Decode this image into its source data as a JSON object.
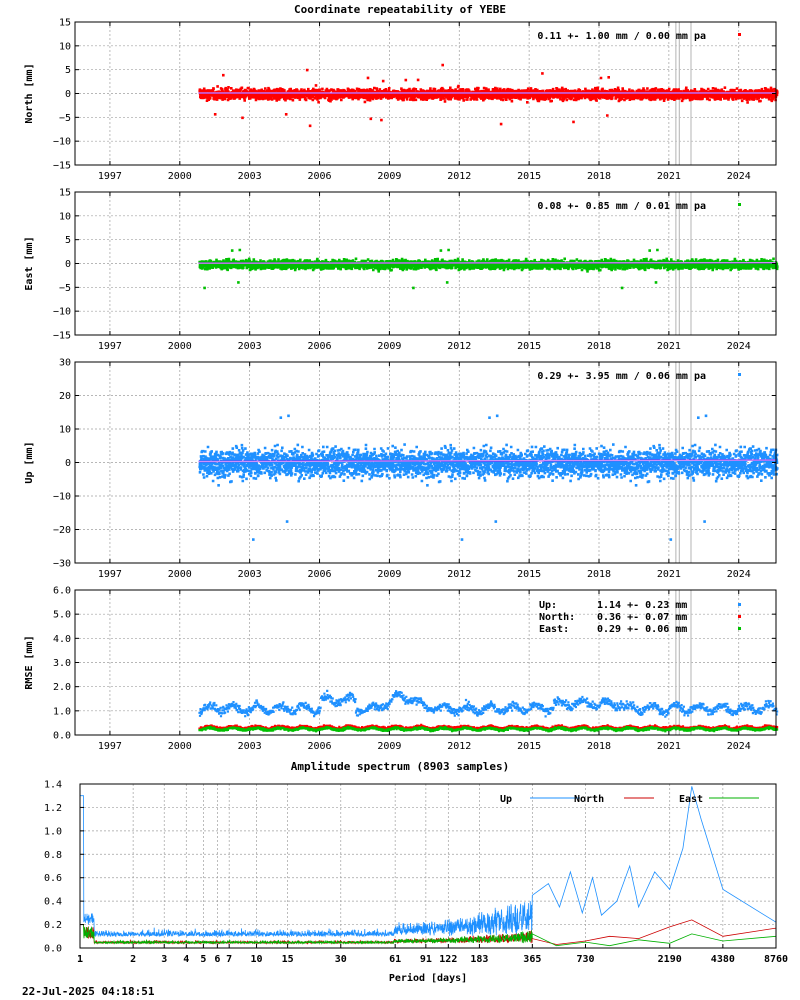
{
  "page": {
    "title": "Coordinate repeatability of YEBE",
    "spectrum_title": "Amplitude spectrum (8903 samples)",
    "timestamp": "22-Jul-2025 04:18:51"
  },
  "colors": {
    "north": "#ff0000",
    "east": "#00c000",
    "up": "#1e90ff",
    "trend": "#a020f0",
    "grid": "#a0a0a0",
    "vline": "#c0c0c0"
  },
  "chart_data": [
    {
      "id": "north",
      "type": "scatter",
      "ylabel": "North [mm]",
      "ylim": [
        -15,
        15
      ],
      "yticks": [
        -15,
        -10,
        -5,
        0,
        5,
        10,
        15
      ],
      "xlim": [
        1995.5,
        2025.6
      ],
      "xticks": [
        1997,
        2000,
        2003,
        2006,
        2009,
        2012,
        2015,
        2018,
        2021,
        2024
      ],
      "x_start": 2000.8,
      "x_end": 2025.6,
      "vertical_lines": [
        2021.3,
        2021.45,
        2021.95
      ],
      "grid": true,
      "legend_position": "top-right",
      "annotation": "0.11 +- 1.00 mm /  0.00 mm pa",
      "mean": 0.11,
      "std": 1.0,
      "trend": 0.0,
      "color": "#ff0000"
    },
    {
      "id": "east",
      "type": "scatter",
      "ylabel": "East [mm]",
      "ylim": [
        -15,
        15
      ],
      "yticks": [
        -15,
        -10,
        -5,
        0,
        5,
        10,
        15
      ],
      "xlim": [
        1995.5,
        2025.6
      ],
      "xticks": [
        1997,
        2000,
        2003,
        2006,
        2009,
        2012,
        2015,
        2018,
        2021,
        2024
      ],
      "x_start": 2000.8,
      "x_end": 2025.6,
      "vertical_lines": [
        2021.3,
        2021.45,
        2021.95
      ],
      "grid": true,
      "legend_position": "top-right",
      "annotation": "0.08 +- 0.85 mm /  0.01 mm pa",
      "mean": 0.08,
      "std": 0.85,
      "trend": 0.01,
      "color": "#00c000"
    },
    {
      "id": "up",
      "type": "scatter",
      "ylabel": "Up [mm]",
      "ylim": [
        -30,
        30
      ],
      "yticks": [
        -30,
        -20,
        -10,
        0,
        10,
        20,
        30
      ],
      "xlim": [
        1995.5,
        2025.6
      ],
      "xticks": [
        1997,
        2000,
        2003,
        2006,
        2009,
        2012,
        2015,
        2018,
        2021,
        2024
      ],
      "x_start": 2000.8,
      "x_end": 2025.6,
      "vertical_lines": [
        2021.3,
        2021.45,
        2021.95
      ],
      "grid": true,
      "legend_position": "top-right",
      "annotation": "0.29 +- 3.95 mm /  0.06 mm pa",
      "mean": 0.29,
      "std": 3.95,
      "trend": 0.06,
      "color": "#1e90ff"
    },
    {
      "id": "rmse",
      "type": "scatter",
      "ylabel": "RMSE [mm]",
      "ylim": [
        0,
        6
      ],
      "yticks": [
        0.0,
        1.0,
        2.0,
        3.0,
        4.0,
        5.0,
        6.0
      ],
      "ytick_labels": [
        "0.0",
        "1.0",
        "2.0",
        "3.0",
        "4.0",
        "5.0",
        "6.0"
      ],
      "xlim": [
        1995.5,
        2025.6
      ],
      "xticks": [
        1997,
        2000,
        2003,
        2006,
        2009,
        2012,
        2015,
        2018,
        2021,
        2024
      ],
      "x_start": 2000.8,
      "x_end": 2025.6,
      "vertical_lines": [
        2021.3,
        2021.45,
        2021.95
      ],
      "grid": true,
      "legend_position": "top-right",
      "legend": [
        {
          "name": "Up:",
          "text": "1.14 +- 0.23 mm",
          "color": "#1e90ff"
        },
        {
          "name": "North:",
          "text": "0.36 +- 0.07 mm",
          "color": "#ff0000"
        },
        {
          "name": "East:",
          "text": "0.29 +- 0.06 mm",
          "color": "#00c000"
        }
      ],
      "series": [
        {
          "name": "Up",
          "mean": 1.14,
          "std": 0.23,
          "color": "#1e90ff"
        },
        {
          "name": "North",
          "mean": 0.36,
          "std": 0.07,
          "color": "#ff0000"
        },
        {
          "name": "East",
          "mean": 0.29,
          "std": 0.06,
          "color": "#00c000"
        }
      ]
    },
    {
      "id": "spectrum",
      "type": "line",
      "xlabel": "Period [days]",
      "ylabel": "",
      "log_x": true,
      "xlim": [
        1,
        8760
      ],
      "xticks": [
        1,
        2,
        3,
        4,
        5,
        6,
        7,
        10,
        15,
        30,
        61,
        91,
        122,
        183,
        365,
        730,
        2190,
        4380,
        8760
      ],
      "ylim": [
        0,
        1.4
      ],
      "yticks": [
        0.0,
        0.2,
        0.4,
        0.6,
        0.8,
        1.0,
        1.2,
        1.4
      ],
      "ytick_labels": [
        "0.0",
        "0.2",
        "0.4",
        "0.6",
        "0.8",
        "1.0",
        "1.2",
        "1.4"
      ],
      "grid": true,
      "legend_position": "top-right",
      "series": [
        {
          "name": "Up",
          "color": "#1e90ff",
          "x": [
            365,
            450,
            520,
            600,
            700,
            800,
            900,
            1100,
            1300,
            1460,
            1800,
            2190,
            2600,
            2920,
            3300,
            4380,
            8760
          ],
          "y": [
            0.45,
            0.55,
            0.35,
            0.65,
            0.3,
            0.6,
            0.28,
            0.4,
            0.7,
            0.35,
            0.65,
            0.5,
            0.85,
            1.38,
            1.1,
            0.5,
            0.22
          ]
        },
        {
          "name": "North",
          "color": "#cc0000",
          "x": [
            365,
            500,
            730,
            1000,
            1460,
            2190,
            2920,
            4380,
            8760
          ],
          "y": [
            0.08,
            0.03,
            0.06,
            0.1,
            0.08,
            0.18,
            0.24,
            0.1,
            0.17
          ]
        },
        {
          "name": "East",
          "color": "#00b000",
          "x": [
            365,
            500,
            730,
            1000,
            1460,
            2190,
            2920,
            4380,
            8760
          ],
          "y": [
            0.12,
            0.02,
            0.05,
            0.02,
            0.07,
            0.04,
            0.12,
            0.06,
            0.1
          ]
        }
      ]
    }
  ]
}
